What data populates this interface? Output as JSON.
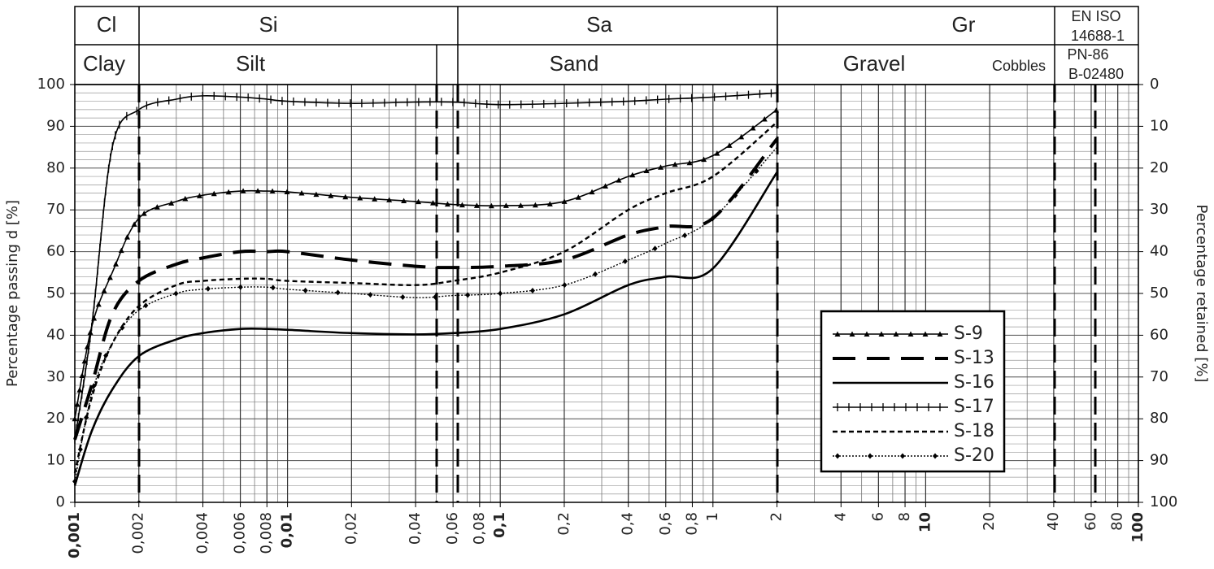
{
  "chart_data": {
    "type": "line",
    "xscale": "log",
    "grid": true,
    "legend": "lower right",
    "ylabel": "Percentage passing d [%]",
    "y2label": "Percentage retained [%]",
    "header": {
      "row1": [
        "Cl",
        "Si",
        "Sa",
        "Gr"
      ],
      "row2": [
        "Clay",
        "Silt",
        "Sand",
        "Gravel",
        "Cobbles"
      ],
      "standard1": [
        "EN ISO",
        "14688-1"
      ],
      "standard2": [
        "PN-86",
        "B-02480"
      ]
    },
    "xlim": [
      0.001,
      100
    ],
    "xticks": [
      {
        "value": 0.001,
        "label": "0,001"
      },
      {
        "value": 0.002,
        "label": "0,002"
      },
      {
        "value": 0.004,
        "label": "0,004"
      },
      {
        "value": 0.006,
        "label": "0,006"
      },
      {
        "value": 0.008,
        "label": "0,008"
      },
      {
        "value": 0.01,
        "label": "0,01"
      },
      {
        "value": 0.02,
        "label": "0,02"
      },
      {
        "value": 0.04,
        "label": "0,04"
      },
      {
        "value": 0.06,
        "label": "0,06"
      },
      {
        "value": 0.08,
        "label": "0,08"
      },
      {
        "value": 0.1,
        "label": "0,1"
      },
      {
        "value": 0.2,
        "label": "0,2"
      },
      {
        "value": 0.4,
        "label": "0,4"
      },
      {
        "value": 0.6,
        "label": "0,6"
      },
      {
        "value": 0.8,
        "label": "0,8"
      },
      1,
      2,
      4,
      6,
      8,
      10,
      20,
      40,
      60,
      80,
      100
    ],
    "ylim": [
      0,
      100
    ],
    "yticks": [
      0,
      10,
      20,
      30,
      40,
      50,
      60,
      70,
      80,
      90,
      100
    ],
    "y2lim": [
      100,
      0
    ],
    "y2ticks": [
      0,
      10,
      20,
      30,
      40,
      50,
      60,
      70,
      80,
      90,
      100
    ],
    "x": [
      0.001,
      0.0012,
      0.0015,
      0.002,
      0.003,
      0.004,
      0.006,
      0.008,
      0.01,
      0.02,
      0.04,
      0.06,
      0.1,
      0.2,
      0.4,
      0.6,
      1,
      2
    ],
    "series": [
      {
        "name": "S-9",
        "color": "#000000",
        "style": "solid",
        "marker": "triangle",
        "values": [
          20,
          42,
          55,
          68,
          72,
          73.5,
          74.5,
          74.5,
          74.3,
          73,
          72,
          71.3,
          71,
          72,
          78,
          80.5,
          83,
          94
        ]
      },
      {
        "name": "S-13",
        "color": "#000000",
        "style": "long-dash",
        "values": [
          15,
          28,
          45,
          53,
          57,
          58.5,
          60,
          60,
          60,
          58,
          56.5,
          56.2,
          56.5,
          58,
          64,
          66,
          68,
          87
        ]
      },
      {
        "name": "S-16",
        "color": "#000000",
        "style": "solid-bold",
        "values": [
          4,
          17,
          27,
          35,
          39,
          40.5,
          41.5,
          41.5,
          41.3,
          40.5,
          40.2,
          40.5,
          41.5,
          45,
          52,
          54,
          56,
          79
        ]
      },
      {
        "name": "S-17",
        "color": "#000000",
        "style": "solid",
        "marker": "tick",
        "values": [
          15,
          42,
          85,
          94,
          96.5,
          97.3,
          97,
          96.5,
          96,
          95.5,
          95.8,
          95.8,
          95.2,
          95.5,
          96,
          96.5,
          97,
          98
        ]
      },
      {
        "name": "S-18",
        "color": "#000000",
        "style": "short-dash",
        "values": [
          7,
          25,
          38,
          47,
          52,
          53,
          53.5,
          53.5,
          53,
          52.5,
          52,
          53,
          55,
          60,
          70,
          74,
          78,
          91
        ]
      },
      {
        "name": "S-20",
        "color": "#000000",
        "style": "dotted",
        "marker": "diamond",
        "values": [
          5,
          26,
          38,
          46,
          50,
          51,
          51.5,
          51.5,
          51,
          50,
          49,
          49.5,
          50,
          52,
          58,
          62,
          68,
          85
        ]
      }
    ]
  }
}
